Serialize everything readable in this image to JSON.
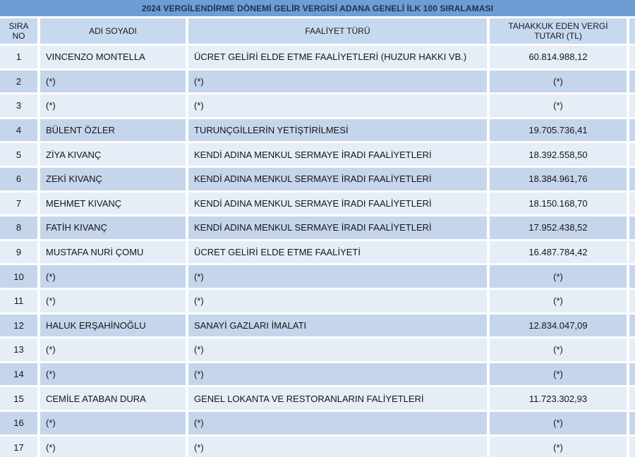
{
  "title": "2024 VERGİLENDİRME DÖNEMİ GELİR VERGİSİ ADANA GENELİ İLK 100 SIRALAMASI",
  "table": {
    "columns": [
      "SIRA NO",
      "ADI SOYADI",
      "FAALİYET TÜRÜ",
      "TAHAKKUK EDEN VERGİ TUTARI (TL)"
    ],
    "rows": [
      {
        "no": "1",
        "name": "VINCENZO MONTELLA",
        "activity": "ÜCRET GELİRİ ELDE ETME FAALİYETLERİ (HUZUR HAKKI VB.)",
        "tax": "60.814.988,12"
      },
      {
        "no": "2",
        "name": "(*)",
        "activity": "(*)",
        "tax": "(*)"
      },
      {
        "no": "3",
        "name": "(*)",
        "activity": "(*)",
        "tax": "(*)"
      },
      {
        "no": "4",
        "name": "BÜLENT ÖZLER",
        "activity": "TURUNÇGİLLERİN YETİŞTİRİLMESİ",
        "tax": "19.705.736,41"
      },
      {
        "no": "5",
        "name": "ZİYA KIVANÇ",
        "activity": "KENDİ ADINA MENKUL SERMAYE İRADI FAALİYETLERİ",
        "tax": "18.392.558,50"
      },
      {
        "no": "6",
        "name": "ZEKİ KIVANÇ",
        "activity": "KENDİ ADINA MENKUL SERMAYE İRADI FAALİYETLERİ",
        "tax": "18.384.961,76"
      },
      {
        "no": "7",
        "name": "MEHMET KIVANÇ",
        "activity": "KENDİ ADINA MENKUL SERMAYE İRADI FAALİYETLERİ",
        "tax": "18.150.168,70"
      },
      {
        "no": "8",
        "name": "FATİH KIVANÇ",
        "activity": "KENDİ ADINA MENKUL SERMAYE İRADI FAALİYETLERİ",
        "tax": "17.952.438,52"
      },
      {
        "no": "9",
        "name": "MUSTAFA NURİ ÇOMU",
        "activity": "ÜCRET GELİRİ ELDE ETME FAALİYETİ",
        "tax": "16.487.784,42"
      },
      {
        "no": "10",
        "name": "(*)",
        "activity": "(*)",
        "tax": "(*)"
      },
      {
        "no": "11",
        "name": "(*)",
        "activity": "(*)",
        "tax": "(*)"
      },
      {
        "no": "12",
        "name": "HALUK ERŞAHİNOĞLU",
        "activity": "SANAYİ GAZLARI İMALATI",
        "tax": "12.834.047,09"
      },
      {
        "no": "13",
        "name": "(*)",
        "activity": "(*)",
        "tax": "(*)"
      },
      {
        "no": "14",
        "name": "(*)",
        "activity": "(*)",
        "tax": "(*)"
      },
      {
        "no": "15",
        "name": "CEMİLE ATABAN DURA",
        "activity": "GENEL LOKANTA VE RESTORANLARIN FALİYETLERİ",
        "tax": "11.723.302,93"
      },
      {
        "no": "16",
        "name": "(*)",
        "activity": "(*)",
        "tax": "(*)"
      },
      {
        "no": "17",
        "name": "(*)",
        "activity": "(*)",
        "tax": "(*)"
      }
    ]
  },
  "colors": {
    "title_bar": "#6d9dd4",
    "title_text": "#1e3152",
    "header_row": "#c7d9ef",
    "row_odd": "#e5edf6",
    "row_even": "#c5d6ec",
    "grid_gap": "#fdfdfe",
    "body_text": "#161616"
  }
}
